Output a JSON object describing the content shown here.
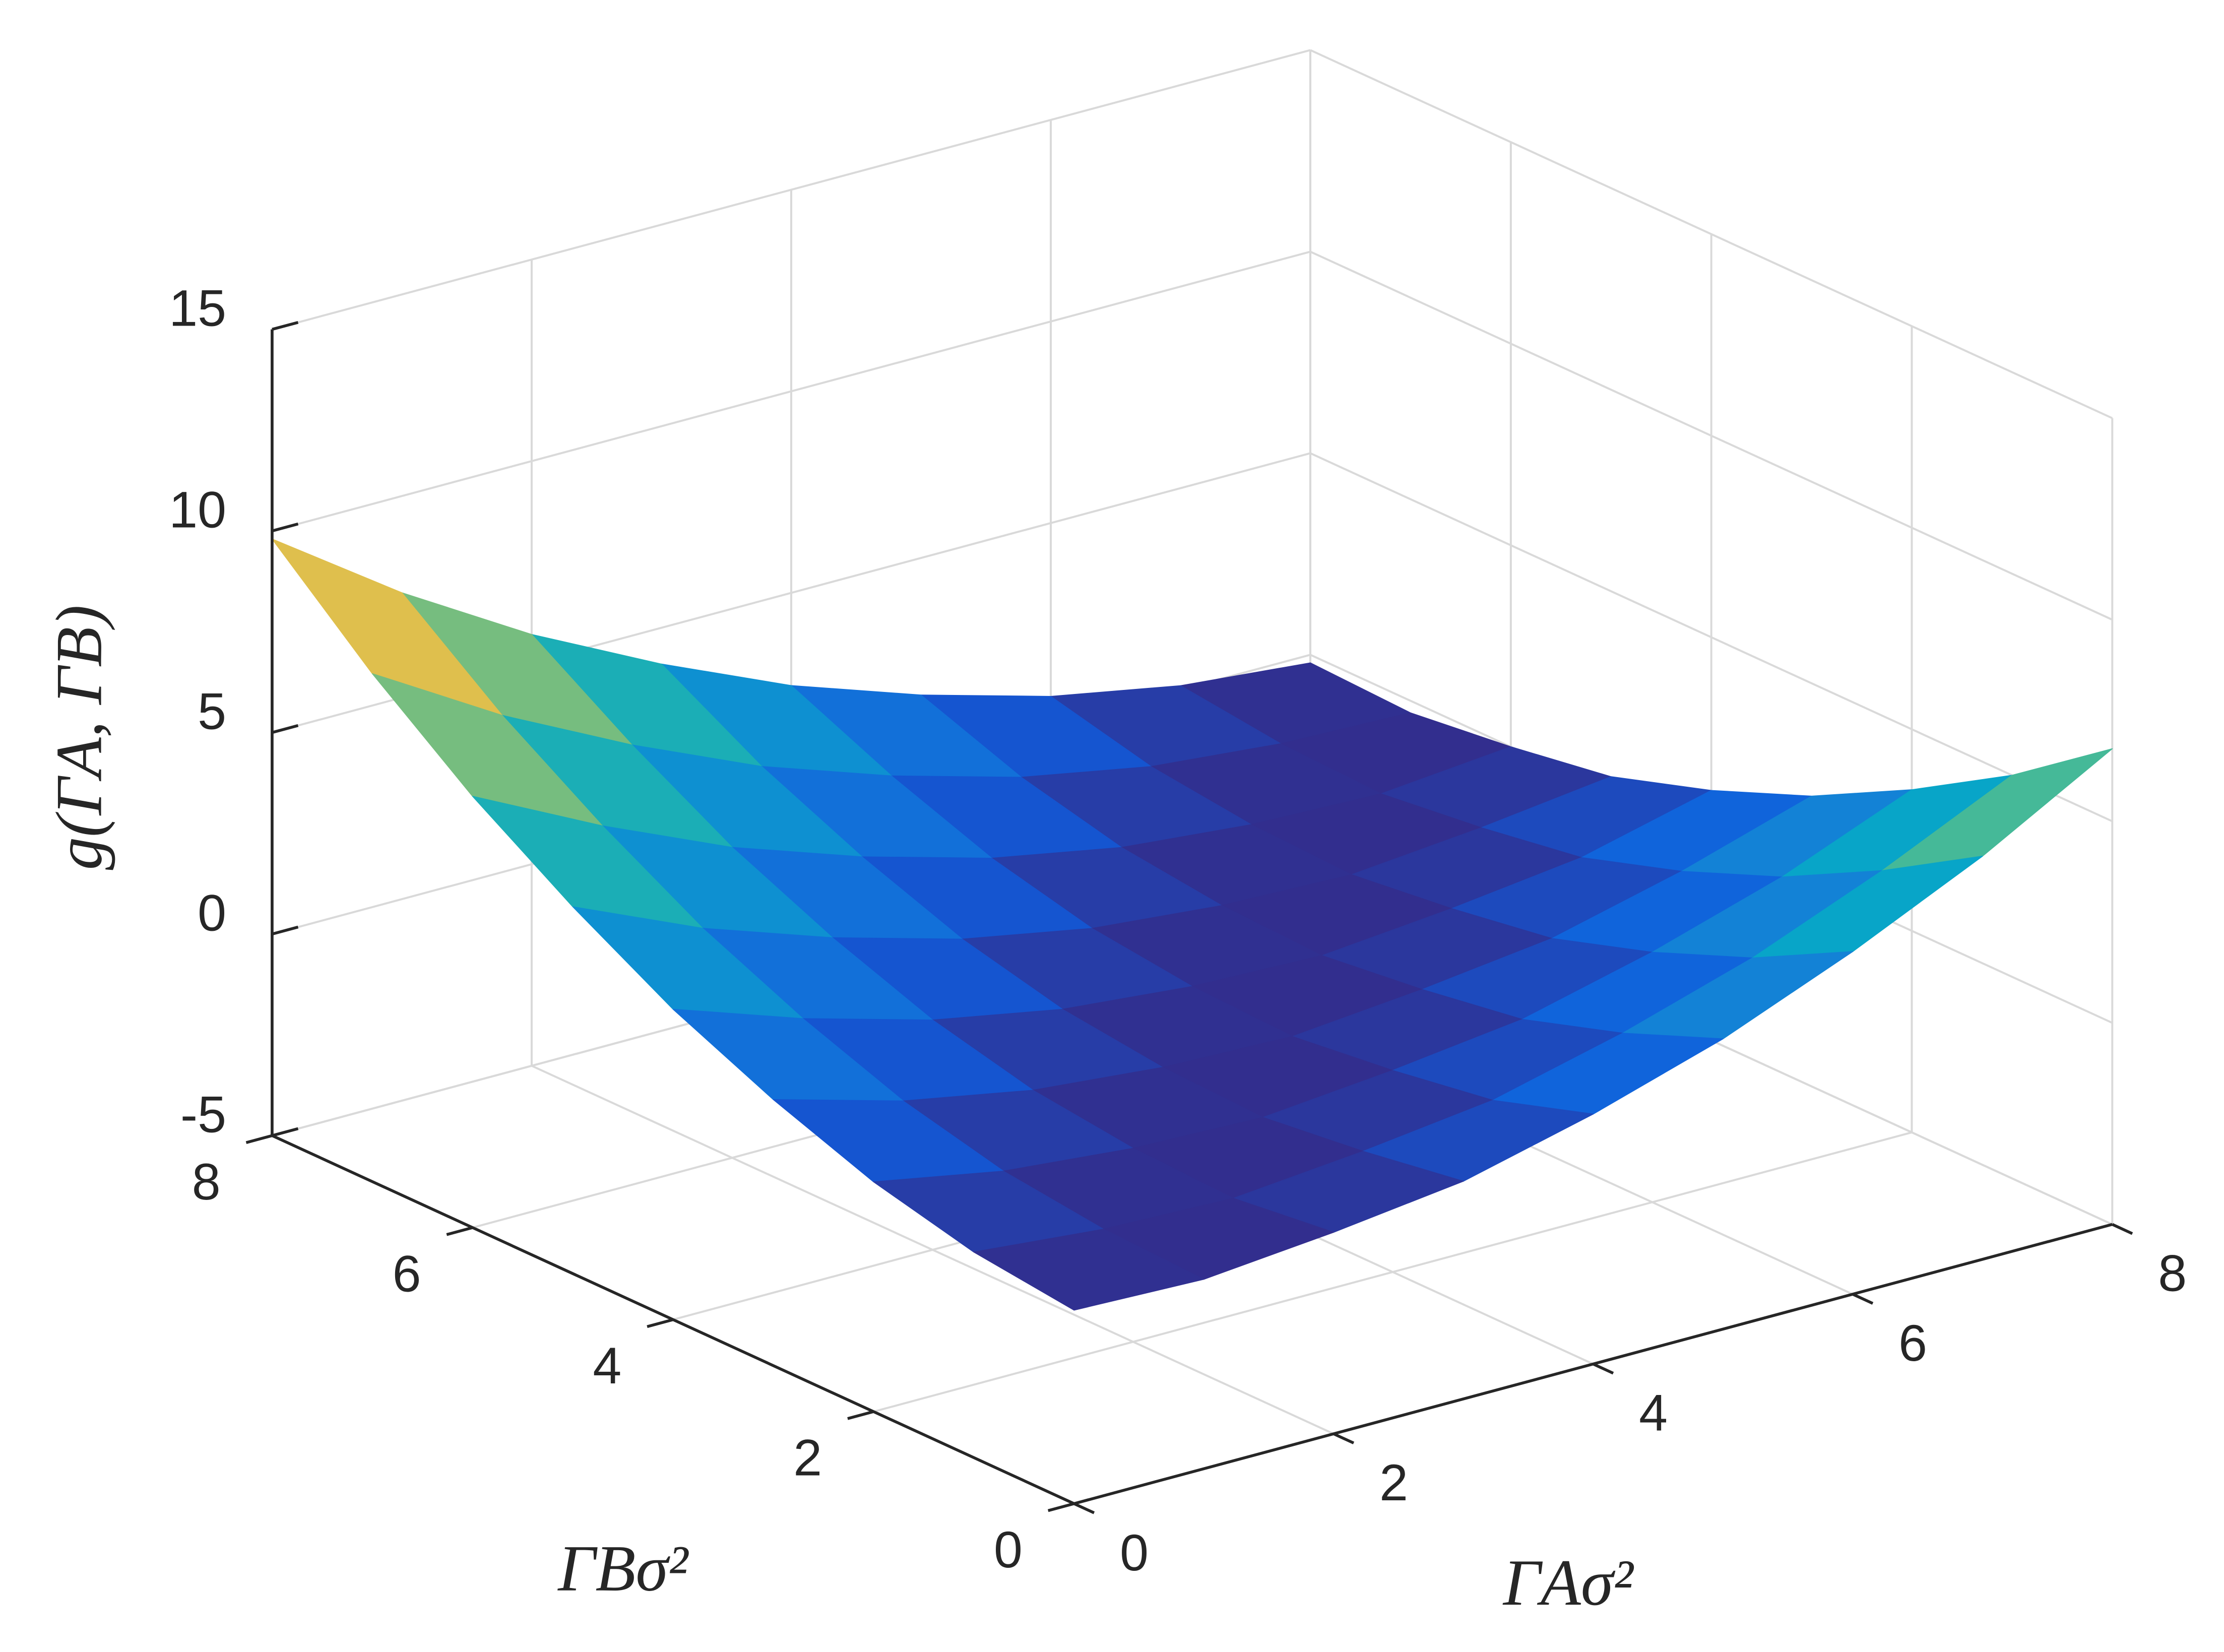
{
  "chart_data": {
    "type": "surface",
    "x": [
      0,
      1,
      2,
      3,
      4,
      5,
      6,
      7,
      8
    ],
    "y": [
      0,
      1,
      2,
      3,
      4,
      5,
      6,
      7,
      8
    ],
    "z": [
      [
        -0.2,
        -0.3,
        0,
        0.4,
        1.2,
        2.2,
        3.5,
        5,
        6.8
      ],
      [
        0.1,
        -0.2,
        -0.3,
        0,
        0.4,
        1.2,
        2.2,
        3.5,
        5
      ],
      [
        0.7,
        0.1,
        -0.2,
        -0.3,
        0,
        0.4,
        1.2,
        2.2,
        3.5
      ],
      [
        1.6,
        0.7,
        0.1,
        -0.2,
        -0.3,
        0,
        0.4,
        1.2,
        2.2
      ],
      [
        2.7,
        1.6,
        0.7,
        0.1,
        -0.2,
        -0.3,
        0,
        0.4,
        1.2
      ],
      [
        4.1,
        2.7,
        1.6,
        0.7,
        0.1,
        -0.2,
        -0.3,
        0,
        0.4
      ],
      [
        5.7,
        4.1,
        2.7,
        1.6,
        0.7,
        0.1,
        -0.2,
        -0.3,
        0
      ],
      [
        7.6,
        5.7,
        4.1,
        2.7,
        1.6,
        0.7,
        0.1,
        -0.2,
        -0.3
      ],
      [
        9.8,
        7.6,
        5.7,
        4.1,
        2.7,
        1.6,
        0.7,
        0.1,
        -0.2
      ]
    ],
    "xlabel": "ΓAσ²",
    "ylabel": "ΓBσ²",
    "zlabel": "g(ΓA, ΓB)",
    "xlim": [
      0,
      8
    ],
    "ylim": [
      0,
      8
    ],
    "zlim": [
      -5,
      15
    ],
    "xticks": [
      0,
      2,
      4,
      6,
      8
    ],
    "yticks": [
      0,
      2,
      4,
      6,
      8
    ],
    "zticks": [
      -5,
      0,
      5,
      10,
      15
    ],
    "grid": true,
    "colormap": "parula"
  }
}
